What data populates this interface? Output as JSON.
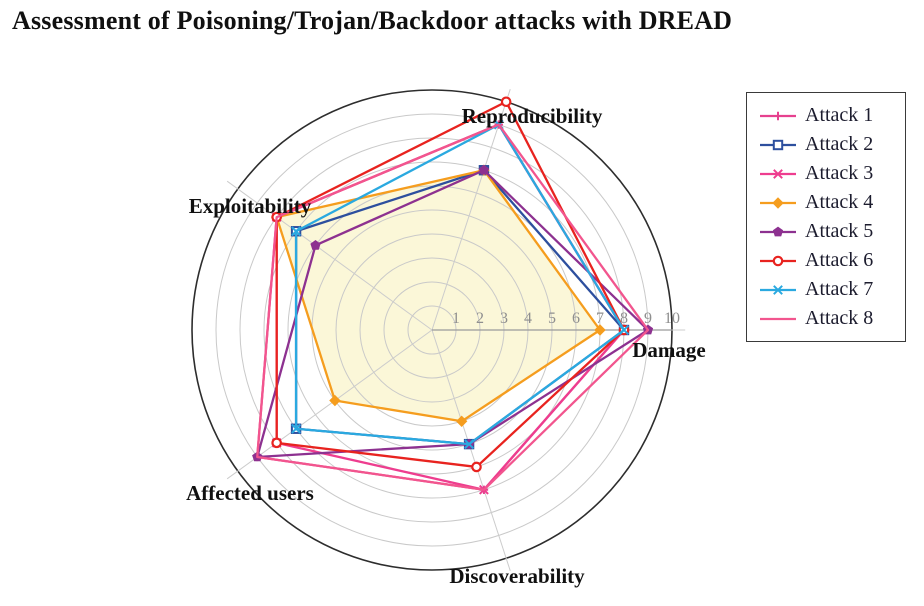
{
  "title": "Assessment of Poisoning/Trojan/Backdoor attacks with DREAD",
  "chart_data": {
    "type": "radar",
    "title": "Assessment of Poisoning/Trojan/Backdoor attacks with DREAD",
    "axes": [
      "Damage",
      "Reproducibility",
      "Exploitability",
      "Affected users",
      "Discoverability"
    ],
    "scale_min": 0,
    "scale_max": 10,
    "tick_labels": [
      "1",
      "2",
      "3",
      "4",
      "5",
      "6",
      "7",
      "8",
      "9",
      "10"
    ],
    "grid": "circular",
    "legend_position": "top-right",
    "series": [
      {
        "name": "Attack 1",
        "color": "#e6418f",
        "marker": "plus",
        "values": [
          8,
          9,
          8,
          9,
          7
        ]
      },
      {
        "name": "Attack 2",
        "color": "#2d4f9e",
        "marker": "square",
        "values": [
          8,
          7,
          7,
          7,
          5
        ]
      },
      {
        "name": "Attack 3",
        "color": "#ee3d8f",
        "marker": "x",
        "values": [
          8,
          9,
          8,
          8,
          7
        ]
      },
      {
        "name": "Attack 4",
        "color": "#f59d1e",
        "marker": "diamond",
        "values": [
          7,
          7,
          8,
          5,
          4
        ],
        "area_fill": "#fbf7d6"
      },
      {
        "name": "Attack 5",
        "color": "#8d3190",
        "marker": "pentagon",
        "values": [
          9,
          7,
          6,
          9,
          5
        ]
      },
      {
        "name": "Attack 6",
        "color": "#e8231f",
        "marker": "circle",
        "values": [
          8,
          10,
          8,
          8,
          6
        ]
      },
      {
        "name": "Attack 7",
        "color": "#2aa9e0",
        "marker": "x",
        "values": [
          8,
          9,
          7,
          7,
          5
        ]
      },
      {
        "name": "Attack 8",
        "color": "#f2558e",
        "marker": "none",
        "values": [
          9,
          9,
          8,
          9,
          7
        ]
      }
    ]
  }
}
